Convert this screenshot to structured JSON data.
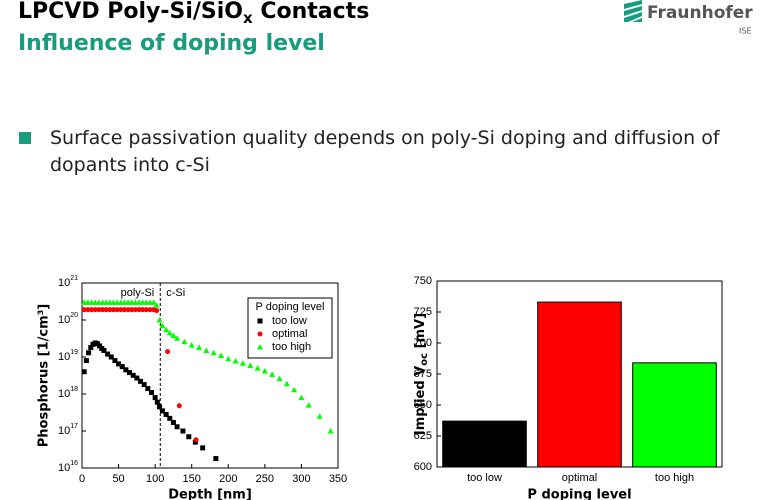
{
  "header": {
    "title": [
      "LPCVD Poly-Si/SiO",
      "x",
      " Contacts"
    ],
    "subtitle": "Influence of doping level",
    "logo": "Fraunhofer",
    "logo_sub": "ISE"
  },
  "bullet": "Surface passivation quality depends on poly-Si doping and diffusion of dopants into c-Si",
  "chart_data": [
    {
      "type": "scatter",
      "xlabel": "Depth [nm]",
      "ylabel": "Phosphorus [1/cm³]",
      "log_y": true,
      "xlim": [
        0,
        350
      ],
      "xticks": [
        0,
        50,
        100,
        150,
        200,
        250,
        300,
        350
      ],
      "ylim": [
        1e+16,
        1e+21
      ],
      "yticks": [
        {
          "value": 1e+16,
          "label": "10",
          "exponent": "16"
        },
        {
          "value": 1e+17,
          "label": "10",
          "exponent": "17"
        },
        {
          "value": 1e+18,
          "label": "10",
          "exponent": "18"
        },
        {
          "value": 1e+19,
          "label": "10",
          "exponent": "19"
        },
        {
          "value": 1e+20,
          "label": "10",
          "exponent": "20"
        },
        {
          "value": 1e+21,
          "label": "10",
          "exponent": "21"
        }
      ],
      "annotations": [
        "poly-Si",
        "c-Si"
      ],
      "divider_x": 107,
      "legend_title": "P doping level",
      "legend": "upper right",
      "series": [
        {
          "name": "too low",
          "color": "#000000",
          "marker": "square",
          "x": [
            3,
            6,
            9,
            12,
            15,
            18,
            21,
            24,
            27,
            30,
            35,
            40,
            45,
            50,
            55,
            60,
            65,
            70,
            75,
            80,
            85,
            90,
            95,
            100,
            103,
            106,
            110,
            115,
            120,
            125,
            130,
            138,
            146,
            155,
            165,
            183
          ],
          "values": [
            4e+18,
            8e+18,
            1.3e+19,
            1.8e+19,
            2.2e+19,
            2.4e+19,
            2.3e+19,
            2e+19,
            1.7e+19,
            1.5e+19,
            1.2e+19,
            1e+19,
            8e+18,
            6.5e+18,
            5.5e+18,
            4.5e+18,
            3.8e+18,
            3.2e+18,
            2.7e+18,
            2.2e+18,
            1.8e+18,
            1.4e+18,
            1.1e+18,
            8e+17,
            6e+17,
            4.5e+17,
            3.5e+17,
            2.8e+17,
            2.2e+17,
            1.7e+17,
            1.3e+17,
            1e+17,
            7e+16,
            5e+16,
            3.5e+16,
            1.8e+16
          ]
        },
        {
          "name": "optimal",
          "color": "#ff0000",
          "marker": "circle",
          "x": [
            3,
            8,
            13,
            18,
            23,
            28,
            33,
            38,
            43,
            48,
            53,
            58,
            63,
            68,
            73,
            78,
            83,
            88,
            93,
            98,
            102,
            117,
            133,
            156
          ],
          "values": [
            1.9e+20,
            1.9e+20,
            1.9e+20,
            1.9e+20,
            1.9e+20,
            1.9e+20,
            1.9e+20,
            1.9e+20,
            1.9e+20,
            1.9e+20,
            1.9e+20,
            1.9e+20,
            1.9e+20,
            1.9e+20,
            1.9e+20,
            1.9e+20,
            1.9e+20,
            1.9e+20,
            1.9e+20,
            1.9e+20,
            1.8e+20,
            1.4e+19,
            4.8e+17,
            5.8e+16
          ]
        },
        {
          "name": "too high",
          "color": "#00ff00",
          "marker": "triangle",
          "x": [
            3,
            8,
            13,
            18,
            23,
            28,
            33,
            38,
            43,
            48,
            53,
            58,
            63,
            68,
            73,
            78,
            83,
            88,
            93,
            98,
            102,
            106,
            110,
            115,
            120,
            125,
            130,
            140,
            150,
            160,
            170,
            180,
            190,
            200,
            210,
            220,
            230,
            240,
            250,
            260,
            270,
            280,
            290,
            300,
            310,
            325,
            340
          ],
          "values": [
            3e+20,
            3e+20,
            3e+20,
            3e+20,
            3e+20,
            3e+20,
            3e+20,
            3e+20,
            3e+20,
            3e+20,
            3e+20,
            3e+20,
            3e+20,
            3e+20,
            3e+20,
            3e+20,
            3e+20,
            3e+20,
            3e+20,
            3e+20,
            2.5e+20,
            1e+20,
            7e+19,
            5.5e+19,
            4.5e+19,
            3.8e+19,
            3.2e+19,
            2.6e+19,
            2.1e+19,
            1.8e+19,
            1.5e+19,
            1.3e+19,
            1.1e+19,
            9e+18,
            7.8e+18,
            6.8e+18,
            5.9e+18,
            5e+18,
            4.2e+18,
            3.4e+18,
            2.6e+18,
            1.9e+18,
            1.3e+18,
            8e+17,
            5e+17,
            2.5e+17,
            1e+17
          ]
        }
      ]
    },
    {
      "type": "bar",
      "xlabel": "P doping level",
      "ylabel": [
        "Implied V",
        "oc",
        " [mV]"
      ],
      "categories": [
        "too low",
        "optimal",
        "too high"
      ],
      "values": [
        637,
        733,
        684
      ],
      "colors": [
        "#000000",
        "#ff0000",
        "#00ff00"
      ],
      "ylim": [
        600,
        750
      ],
      "yticks": [
        600,
        625,
        650,
        675,
        700,
        725,
        750
      ]
    }
  ]
}
